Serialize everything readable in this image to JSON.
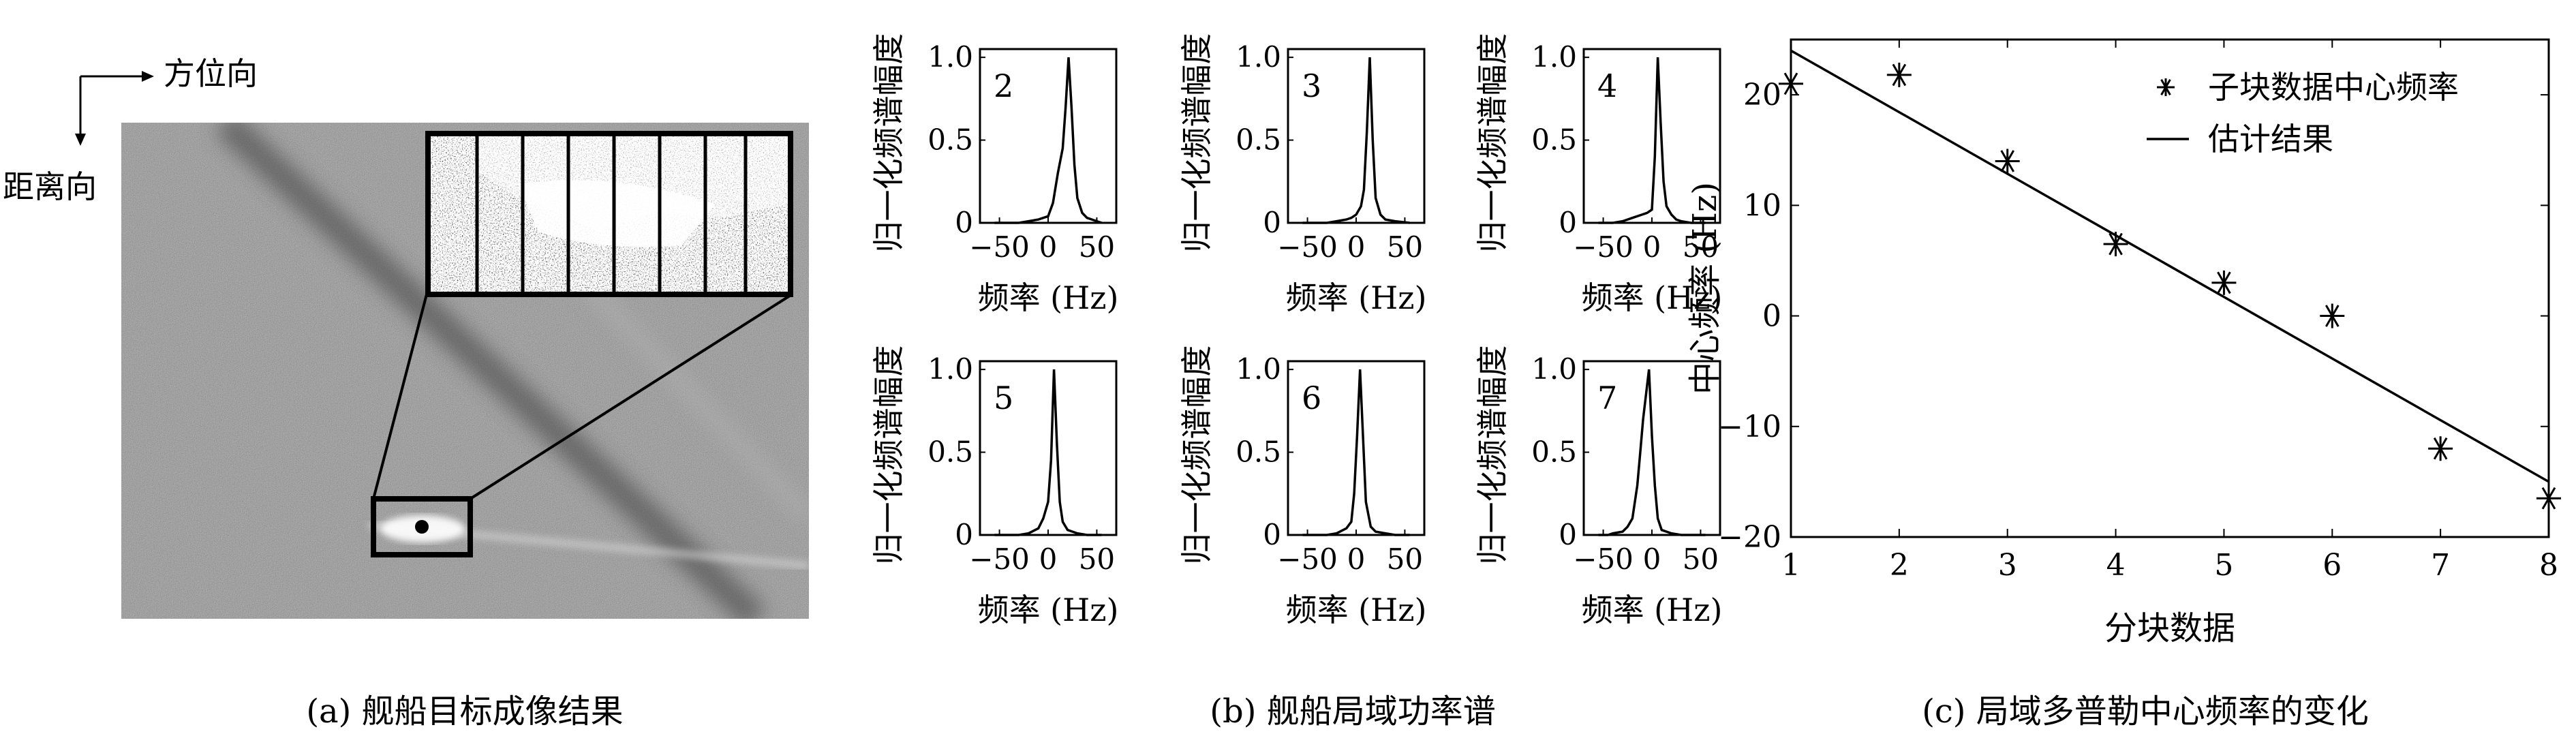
{
  "panel_a": {
    "axis_azimuth": "方位向",
    "axis_range": "距离向",
    "caption": "(a) 舰船目标成像结果",
    "colors": {
      "sar_background": "#8a8a8a",
      "frame": "#000000"
    }
  },
  "panel_b": {
    "caption": "(b) 舰船局域功率谱",
    "ylabel": "归一化频谱幅度",
    "xlabel": "频率 (Hz)",
    "x_ticks": [
      "−50",
      "0",
      "50"
    ],
    "y_ticks": [
      "0",
      "0.5",
      "1.0"
    ]
  },
  "panel_c": {
    "caption": "(c) 局域多普勒中心频率的变化",
    "legend_star": "子块数据中心频率",
    "legend_line": "估计结果",
    "xlabel": "分块数据",
    "ylabel": "中心频率 (Hz)",
    "x_ticks": [
      "1",
      "2",
      "3",
      "4",
      "5",
      "6",
      "7",
      "8"
    ],
    "y_ticks": [
      "20",
      "10",
      "0",
      "−10",
      "−20"
    ]
  },
  "chart_data": [
    {
      "type": "line",
      "panel": "b",
      "xlabel": "频率 (Hz)",
      "ylabel": "归一化频谱幅度",
      "xlim": [
        -70,
        70
      ],
      "ylim": [
        0,
        1.05
      ],
      "subplots": [
        {
          "label": "2",
          "x": [
            -55,
            -40,
            -30,
            -20,
            -10,
            0,
            5,
            10,
            15,
            18,
            21,
            24,
            27,
            30,
            35,
            40,
            45,
            50,
            55
          ],
          "y": [
            0,
            0,
            0,
            0.01,
            0.02,
            0.04,
            0.12,
            0.3,
            0.45,
            0.7,
            1.0,
            0.7,
            0.35,
            0.15,
            0.06,
            0.03,
            0.02,
            0.01,
            0
          ]
        },
        {
          "label": "3",
          "x": [
            -55,
            -40,
            -30,
            -20,
            -10,
            -5,
            0,
            5,
            8,
            11,
            14,
            17,
            20,
            25,
            30,
            40,
            55
          ],
          "y": [
            0,
            0,
            0,
            0.01,
            0.02,
            0.03,
            0.05,
            0.1,
            0.2,
            0.55,
            1.0,
            0.5,
            0.15,
            0.05,
            0.02,
            0.01,
            0
          ]
        },
        {
          "label": "4",
          "x": [
            -55,
            -40,
            -30,
            -20,
            -10,
            -5,
            0,
            3,
            6,
            9,
            12,
            15,
            20,
            25,
            30,
            40,
            55
          ],
          "y": [
            0,
            0,
            0.01,
            0.03,
            0.05,
            0.06,
            0.08,
            0.4,
            1.0,
            0.6,
            0.25,
            0.1,
            0.05,
            0.02,
            0.01,
            0,
            0
          ]
        },
        {
          "label": "5",
          "x": [
            -55,
            -40,
            -30,
            -20,
            -10,
            -5,
            0,
            3,
            6,
            9,
            12,
            15,
            20,
            25,
            30,
            40,
            55
          ],
          "y": [
            0,
            0,
            0,
            0.01,
            0.04,
            0.1,
            0.2,
            0.45,
            1.0,
            0.55,
            0.2,
            0.08,
            0.03,
            0.02,
            0.01,
            0,
            0
          ]
        },
        {
          "label": "6",
          "x": [
            -55,
            -40,
            -30,
            -20,
            -10,
            -5,
            -2,
            1,
            4,
            7,
            10,
            15,
            20,
            30,
            40,
            55
          ],
          "y": [
            0,
            0,
            0,
            0.01,
            0.04,
            0.08,
            0.25,
            0.6,
            1.0,
            0.6,
            0.2,
            0.05,
            0.02,
            0.01,
            0,
            0
          ]
        },
        {
          "label": "7",
          "x": [
            -55,
            -45,
            -40,
            -30,
            -25,
            -20,
            -15,
            -12,
            -9,
            -6,
            -3,
            0,
            3,
            6,
            10,
            20,
            30,
            40,
            55
          ],
          "y": [
            0,
            0,
            0.01,
            0.02,
            0.05,
            0.1,
            0.3,
            0.5,
            0.7,
            0.85,
            1.0,
            0.6,
            0.3,
            0.1,
            0.03,
            0.01,
            0,
            0,
            0
          ]
        }
      ]
    },
    {
      "type": "scatter",
      "panel": "c",
      "xlabel": "分块数据",
      "ylabel": "中心频率 (Hz)",
      "xlim": [
        1,
        8
      ],
      "ylim": [
        -20,
        25
      ],
      "series": [
        {
          "name": "子块数据中心频率",
          "x": [
            1,
            2,
            3,
            4,
            5,
            6,
            7,
            8
          ],
          "y": [
            21,
            21.8,
            14,
            6.5,
            3,
            0,
            -12,
            -16.5
          ]
        },
        {
          "name": "估计结果",
          "x": [
            1,
            8
          ],
          "y": [
            24,
            -15
          ]
        }
      ]
    }
  ]
}
